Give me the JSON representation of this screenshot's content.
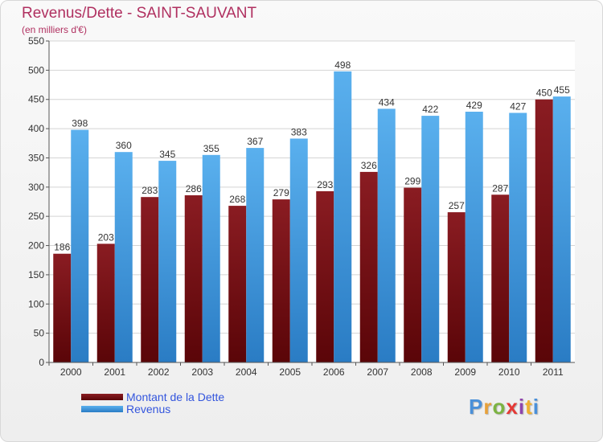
{
  "chart_data": {
    "type": "bar",
    "title": "Revenus/Dette - SAINT-SAUVANT",
    "subtitle": "(en milliers d'€)",
    "categories": [
      "2000",
      "2001",
      "2002",
      "2003",
      "2004",
      "2005",
      "2006",
      "2007",
      "2008",
      "2009",
      "2010",
      "2011"
    ],
    "series": [
      {
        "name": "Montant de la Dette",
        "color": "#7a1418",
        "values": [
          186,
          203,
          283,
          286,
          268,
          279,
          293,
          326,
          299,
          257,
          287,
          450
        ]
      },
      {
        "name": "Revenus",
        "color": "#4aa6e8",
        "values": [
          398,
          360,
          345,
          355,
          367,
          383,
          498,
          434,
          422,
          429,
          427,
          455
        ]
      }
    ],
    "ylim": [
      0,
      550
    ],
    "yticks": [
      0,
      50,
      100,
      150,
      200,
      250,
      300,
      350,
      400,
      450,
      500,
      550
    ],
    "grid": true,
    "legend_position": "bottom-left",
    "xlabel": "",
    "ylabel": ""
  },
  "logo": {
    "letters": [
      {
        "char": "P",
        "color": "#4a90d9"
      },
      {
        "char": "r",
        "color": "#e8a13a"
      },
      {
        "char": "o",
        "color": "#7cb342"
      },
      {
        "char": "x",
        "color": "#e53935"
      },
      {
        "char": "i",
        "color": "#8e44ad"
      },
      {
        "char": "t",
        "color": "#f0b030"
      },
      {
        "char": "i",
        "color": "#4a90d9"
      }
    ]
  }
}
